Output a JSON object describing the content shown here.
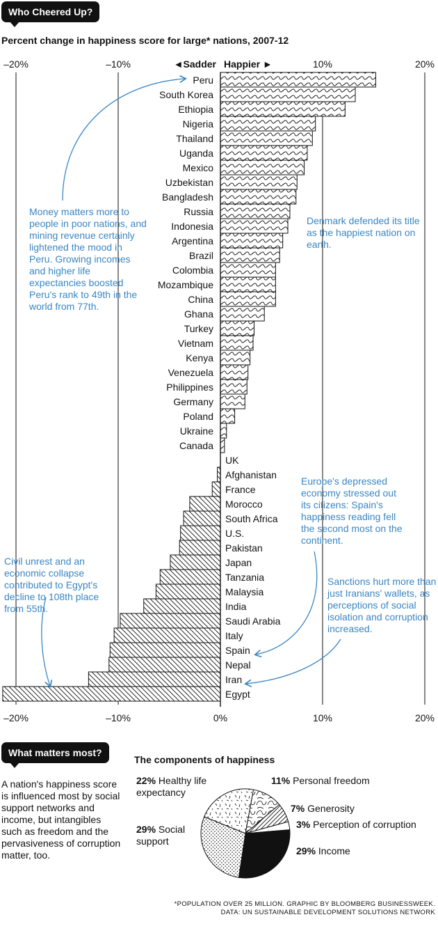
{
  "header": {
    "badge": "Who Cheered Up?",
    "subtitle": "Percent change in happiness score for large* nations, 2007-12"
  },
  "chart_data": {
    "type": "bar",
    "orientation": "horizontal",
    "x_ticks": [
      "–20%",
      "–10%",
      "0%",
      "10%",
      "20%"
    ],
    "top_ticks": [
      "–20%",
      "–10%",
      "10%",
      "20%"
    ],
    "sadder_label": "◄Sadder",
    "happier_label": "Happier ►",
    "xlim": [
      -21.5,
      21
    ],
    "categories": [
      "Peru",
      "South Korea",
      "Ethiopia",
      "Nigeria",
      "Thailand",
      "Uganda",
      "Mexico",
      "Uzbekistan",
      "Bangladesh",
      "Russia",
      "Indonesia",
      "Argentina",
      "Brazil",
      "Colombia",
      "Mozambique",
      "China",
      "Ghana",
      "Turkey",
      "Vietnam",
      "Kenya",
      "Venezuela",
      "Philippines",
      "Germany",
      "Poland",
      "Ukraine",
      "Canada",
      "UK",
      "Afghanistan",
      "France",
      "Morocco",
      "South Africa",
      "U.S.",
      "Pakistan",
      "Japan",
      "Tanzania",
      "Malaysia",
      "India",
      "Saudi Arabia",
      "Italy",
      "Spain",
      "Nepal",
      "Iran",
      "Egypt"
    ],
    "values": [
      15.2,
      13.2,
      12.2,
      9.3,
      9.0,
      8.5,
      8.2,
      7.5,
      7.4,
      6.8,
      6.6,
      6.1,
      5.8,
      5.4,
      5.4,
      5.4,
      4.3,
      3.3,
      3.2,
      2.9,
      2.7,
      2.6,
      2.4,
      1.4,
      0.6,
      0.4,
      0.0,
      -0.3,
      -0.8,
      -3.0,
      -3.6,
      -3.9,
      -4.0,
      -4.9,
      -5.9,
      -6.3,
      -7.5,
      -9.8,
      -10.4,
      -10.8,
      -10.9,
      -12.9,
      -21.3
    ]
  },
  "annotations": {
    "peru": "Money matters more to people in poor nations, and mining revenue certainly lightened the mood in Peru. Growing incomes and higher life expectancies boosted Peru's rank to 49th in the world from 77th.",
    "denmark": "Denmark defended its title as the happiest nation on earth.",
    "europe": "Europe's depressed economy stressed out its citizens: Spain's happiness reading fell the second most on the continent.",
    "iran": "Sanctions hurt more than just Iranians' wallets, as perceptions of social isolation and corruption increased.",
    "egypt": "Civil unrest and an economic collapse contributed to Egypt's decline to 108th place from 55th."
  },
  "bottom": {
    "badge": "What matters most?",
    "note": "A nation's happiness score is influenced most by social support networks and income, but intangibles such as freedom and the pervasiveness of corruption matter, too.",
    "pie_title": "The components of happiness",
    "pie": [
      {
        "pct": "22%",
        "label": "Healthy life expectancy",
        "value": 22
      },
      {
        "pct": "11%",
        "label": "Personal freedom",
        "value": 11
      },
      {
        "pct": "7%",
        "label": "Generosity",
        "value": 7
      },
      {
        "pct": "3%",
        "label": "Perception of corruption",
        "value": 3
      },
      {
        "pct": "29%",
        "label": "Income",
        "value": 29
      },
      {
        "pct": "29%",
        "label": "Social support",
        "value": 29
      }
    ]
  },
  "footer": {
    "line1": "*POPULATION OVER 25 MILLION. GRAPHIC BY BLOOMBERG BUSINESSWEEK.",
    "line2": "DATA: UN SUSTAINABLE DEVELOPMENT SOLUTIONS NETWORK"
  },
  "colors": {
    "annotation": "#3a86c3",
    "ink": "#111111"
  }
}
